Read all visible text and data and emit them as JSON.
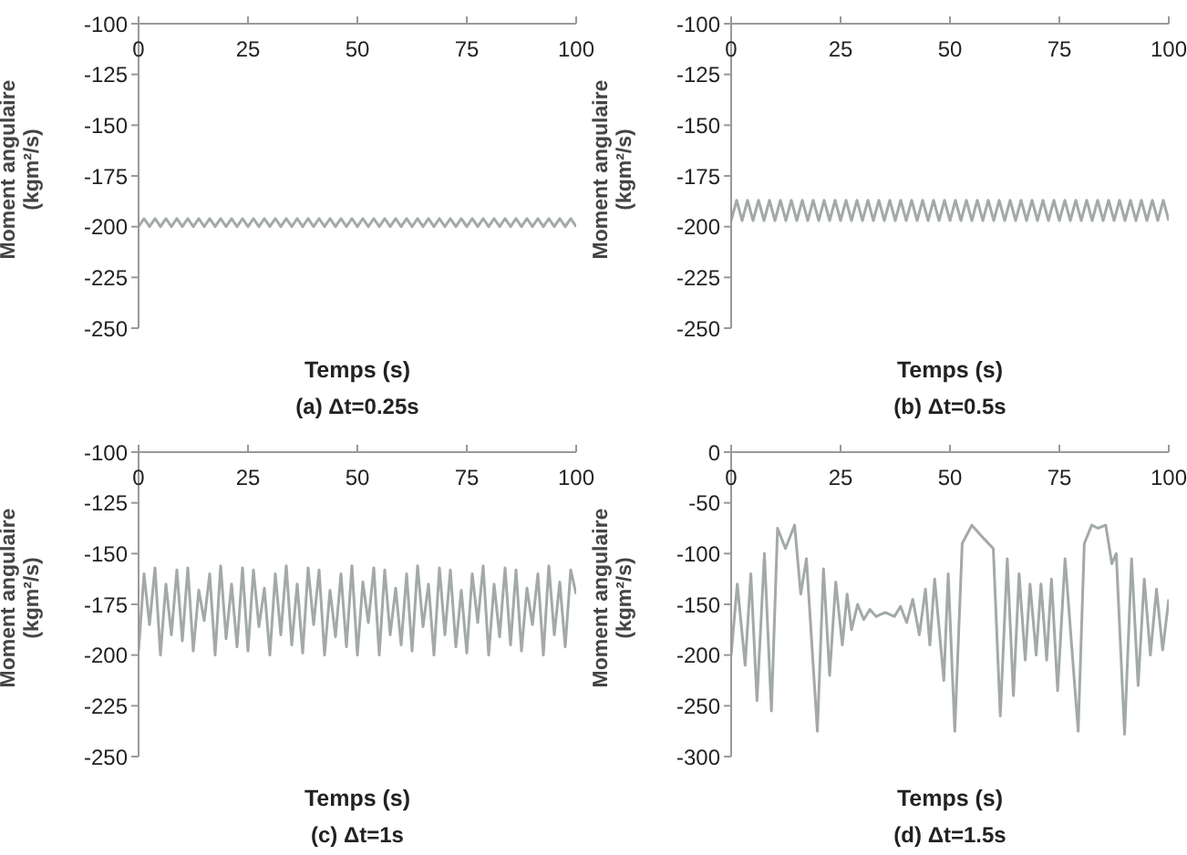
{
  "chart_data": [
    {
      "type": "line",
      "title": "(a) Δt=0.25s",
      "xlabel": "Temps (s)",
      "ylabel": "Moment angulaire (kgm²/s)",
      "color": "#a3aaa6",
      "xlim": [
        0,
        100
      ],
      "xticks": [
        0,
        25,
        50,
        75,
        100
      ],
      "ylim": [
        -250,
        -100
      ],
      "yticks": [
        -250,
        -225,
        -200,
        -175,
        -150,
        -125,
        -100
      ],
      "x": [
        0,
        1.25,
        2.5,
        3.75,
        5,
        6.25,
        7.5,
        8.75,
        10,
        11.25,
        12.5,
        13.75,
        15,
        16.25,
        17.5,
        18.75,
        20,
        21.25,
        22.5,
        23.75,
        25,
        26.25,
        27.5,
        28.75,
        30,
        31.25,
        32.5,
        33.75,
        35,
        36.25,
        37.5,
        38.75,
        40,
        41.25,
        42.5,
        43.75,
        45,
        46.25,
        47.5,
        48.75,
        50,
        51.25,
        52.5,
        53.75,
        55,
        56.25,
        57.5,
        58.75,
        60,
        61.25,
        62.5,
        63.75,
        65,
        66.25,
        67.5,
        68.75,
        70,
        71.25,
        72.5,
        73.75,
        75,
        76.25,
        77.5,
        78.75,
        80,
        81.25,
        82.5,
        83.75,
        85,
        86.25,
        87.5,
        88.75,
        90,
        91.25,
        92.5,
        93.75,
        95,
        96.25,
        97.5,
        98.75,
        100
      ],
      "values": [
        -200,
        -196,
        -200,
        -196,
        -200,
        -196,
        -200,
        -196,
        -200,
        -196,
        -200,
        -196,
        -200,
        -196,
        -200,
        -196,
        -200,
        -196,
        -200,
        -196,
        -200,
        -196,
        -200,
        -196,
        -200,
        -196,
        -200,
        -196,
        -200,
        -196,
        -200,
        -196,
        -200,
        -196,
        -200,
        -196,
        -200,
        -196,
        -200,
        -196,
        -200,
        -196,
        -200,
        -196,
        -200,
        -196,
        -200,
        -196,
        -200,
        -196,
        -200,
        -196,
        -200,
        -196,
        -200,
        -196,
        -200,
        -196,
        -200,
        -196,
        -200,
        -196,
        -200,
        -196,
        -200,
        -196,
        -200,
        -196,
        -200,
        -196,
        -200,
        -196,
        -200,
        -196,
        -200,
        -196,
        -200,
        -196,
        -200,
        -196,
        -200
      ]
    },
    {
      "type": "line",
      "title": "(b) Δt=0.5s",
      "xlabel": "Temps (s)",
      "ylabel": "Moment angulaire (kgm²/s)",
      "color": "#a3aaa6",
      "xlim": [
        0,
        100
      ],
      "xticks": [
        0,
        25,
        50,
        75,
        100
      ],
      "ylim": [
        -250,
        -100
      ],
      "yticks": [
        -250,
        -225,
        -200,
        -175,
        -150,
        -125,
        -100
      ],
      "x": [
        0,
        1.25,
        2.5,
        3.75,
        5,
        6.25,
        7.5,
        8.75,
        10,
        11.25,
        12.5,
        13.75,
        15,
        16.25,
        17.5,
        18.75,
        20,
        21.25,
        22.5,
        23.75,
        25,
        26.25,
        27.5,
        28.75,
        30,
        31.25,
        32.5,
        33.75,
        35,
        36.25,
        37.5,
        38.75,
        40,
        41.25,
        42.5,
        43.75,
        45,
        46.25,
        47.5,
        48.75,
        50,
        51.25,
        52.5,
        53.75,
        55,
        56.25,
        57.5,
        58.75,
        60,
        61.25,
        62.5,
        63.75,
        65,
        66.25,
        67.5,
        68.75,
        70,
        71.25,
        72.5,
        73.75,
        75,
        76.25,
        77.5,
        78.75,
        80,
        81.25,
        82.5,
        83.75,
        85,
        86.25,
        87.5,
        88.75,
        90,
        91.25,
        92.5,
        93.75,
        95,
        96.25,
        97.5,
        98.75,
        100
      ],
      "values": [
        -197,
        -187,
        -197,
        -187,
        -197,
        -187,
        -197,
        -187,
        -197,
        -187,
        -197,
        -187,
        -197,
        -187,
        -197,
        -187,
        -197,
        -187,
        -197,
        -187,
        -197,
        -187,
        -197,
        -187,
        -197,
        -187,
        -197,
        -187,
        -197,
        -187,
        -197,
        -187,
        -197,
        -187,
        -197,
        -187,
        -197,
        -187,
        -197,
        -187,
        -197,
        -187,
        -197,
        -187,
        -197,
        -187,
        -197,
        -187,
        -197,
        -187,
        -197,
        -187,
        -197,
        -187,
        -197,
        -187,
        -197,
        -187,
        -197,
        -187,
        -197,
        -187,
        -197,
        -187,
        -197,
        -187,
        -197,
        -187,
        -197,
        -187,
        -197,
        -187,
        -197,
        -187,
        -197,
        -187,
        -197,
        -187,
        -197,
        -187,
        -197
      ]
    },
    {
      "type": "line",
      "title": "(c) Δt=1s",
      "xlabel": "Temps (s)",
      "ylabel": "Moment angulaire (kgm²/s)",
      "color": "#a3aaa6",
      "xlim": [
        0,
        100
      ],
      "xticks": [
        0,
        25,
        50,
        75,
        100
      ],
      "ylim": [
        -250,
        -100
      ],
      "yticks": [
        -250,
        -225,
        -200,
        -175,
        -150,
        -125,
        -100
      ],
      "x": [
        0,
        1.25,
        2.5,
        3.75,
        5,
        6.25,
        7.5,
        8.75,
        10,
        11.25,
        12.5,
        13.75,
        15,
        16.25,
        17.5,
        18.75,
        20,
        21.25,
        22.5,
        23.75,
        25,
        26.25,
        27.5,
        28.75,
        30,
        31.25,
        32.5,
        33.75,
        35,
        36.25,
        37.5,
        38.75,
        40,
        41.25,
        42.5,
        43.75,
        45,
        46.25,
        47.5,
        48.75,
        50,
        51.25,
        52.5,
        53.75,
        55,
        56.25,
        57.5,
        58.75,
        60,
        61.25,
        62.5,
        63.75,
        65,
        66.25,
        67.5,
        68.75,
        70,
        71.25,
        72.5,
        73.75,
        75,
        76.25,
        77.5,
        78.75,
        80,
        81.25,
        82.5,
        83.75,
        85,
        86.25,
        87.5,
        88.75,
        90,
        91.25,
        92.5,
        93.75,
        95,
        96.25,
        97.5,
        98.75,
        100
      ],
      "values": [
        -198,
        -160,
        -185,
        -157,
        -200,
        -165,
        -190,
        -158,
        -193,
        -157,
        -198,
        -168,
        -183,
        -160,
        -200,
        -156,
        -192,
        -165,
        -196,
        -157,
        -198,
        -158,
        -186,
        -167,
        -200,
        -160,
        -190,
        -156,
        -195,
        -165,
        -199,
        -157,
        -185,
        -158,
        -200,
        -168,
        -191,
        -160,
        -196,
        -156,
        -200,
        -164,
        -184,
        -157,
        -200,
        -158,
        -190,
        -167,
        -195,
        -160,
        -198,
        -156,
        -186,
        -165,
        -200,
        -157,
        -190,
        -158,
        -196,
        -168,
        -199,
        -160,
        -184,
        -156,
        -200,
        -165,
        -191,
        -157,
        -195,
        -158,
        -198,
        -167,
        -185,
        -160,
        -200,
        -156,
        -190,
        -164,
        -196,
        -158,
        -170
      ]
    },
    {
      "type": "line",
      "title": "(d) Δt=1.5s",
      "xlabel": "Temps (s)",
      "ylabel": "Moment angulaire (kgm²/s)",
      "color": "#a3aaa6",
      "xlim": [
        0,
        100
      ],
      "xticks": [
        0,
        25,
        50,
        75,
        100
      ],
      "ylim": [
        -300,
        0
      ],
      "yticks": [
        -300,
        -250,
        -200,
        -150,
        -100,
        -50,
        0
      ],
      "x": [
        0,
        1.4,
        3.2,
        4.5,
        5.9,
        7.6,
        9.2,
        10.6,
        12.4,
        14.5,
        15.9,
        17.2,
        19.7,
        21.1,
        22.5,
        23.9,
        25.4,
        26.5,
        27.5,
        28.9,
        30.3,
        31.7,
        33.1,
        35.2,
        37.3,
        38.7,
        40.1,
        41.5,
        43,
        44.4,
        45.4,
        46.5,
        48.6,
        49.6,
        51.1,
        52.8,
        55,
        57.7,
        59.9,
        61.5,
        63.1,
        64.5,
        65.8,
        67.2,
        68.3,
        69.7,
        70.8,
        72.1,
        73.2,
        74.6,
        76.3,
        79.3,
        80.7,
        82.4,
        83.8,
        85.6,
        87,
        88,
        89.9,
        91.5,
        93,
        94.4,
        95.8,
        97.2,
        98.6,
        100
      ],
      "values": [
        -200,
        -130,
        -210,
        -120,
        -245,
        -100,
        -255,
        -75,
        -95,
        -72,
        -140,
        -105,
        -275,
        -115,
        -220,
        -128,
        -190,
        -140,
        -175,
        -150,
        -165,
        -155,
        -162,
        -158,
        -162,
        -152,
        -168,
        -145,
        -180,
        -135,
        -190,
        -125,
        -225,
        -120,
        -275,
        -90,
        -72,
        -85,
        -95,
        -260,
        -105,
        -240,
        -120,
        -205,
        -130,
        -200,
        -130,
        -205,
        -125,
        -235,
        -105,
        -275,
        -90,
        -72,
        -75,
        -72,
        -110,
        -100,
        -278,
        -105,
        -230,
        -125,
        -200,
        -135,
        -195,
        -145
      ]
    }
  ]
}
